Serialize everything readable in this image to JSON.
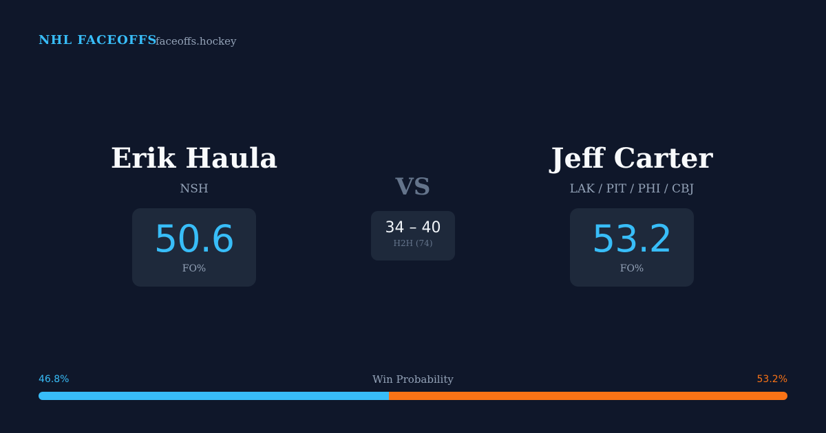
{
  "header": {
    "brand": "NHL FACEOFFS",
    "site": "faceoffs.hockey"
  },
  "players": [
    {
      "name": "Erik Haula",
      "team": "NSH",
      "fo_pct": 50.6,
      "fo_label": "FO%"
    },
    {
      "name": "Jeff Carter",
      "team": "LAK / PIT / PHI / CBJ",
      "fo_pct": 53.2,
      "fo_label": "FO%"
    }
  ],
  "vs": "VS",
  "h2h": {
    "score": "34 – 40",
    "label": "H2H (74)"
  },
  "win_probability": {
    "label": "Win Probability",
    "left": {
      "value": 46.8,
      "label": "46.8%"
    },
    "right": {
      "value": 53.2,
      "label": "53.2%"
    }
  }
}
